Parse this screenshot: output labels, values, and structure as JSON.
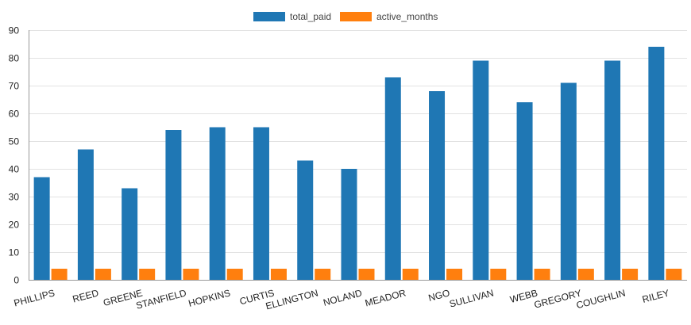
{
  "chart_data": {
    "type": "bar",
    "categories": [
      "PHILLIPS",
      "REED",
      "GREENE",
      "STANFIELD",
      "HOPKINS",
      "CURTIS",
      "ELLINGTON",
      "NOLAND",
      "MEADOR",
      "NGO",
      "SULLIVAN",
      "WEBB",
      "GREGORY",
      "COUGHLIN",
      "RILEY"
    ],
    "series": [
      {
        "name": "total_paid",
        "color": "#1f77b4",
        "values": [
          37,
          47,
          33,
          54,
          55,
          55,
          43,
          40,
          73,
          68,
          79,
          64,
          71,
          79,
          84
        ]
      },
      {
        "name": "active_months",
        "color": "#ff7f0e",
        "values": [
          4,
          4,
          4,
          4,
          4,
          4,
          4,
          4,
          4,
          4,
          4,
          4,
          4,
          4,
          4
        ]
      }
    ],
    "ylim": [
      0,
      90
    ],
    "yticks": [
      0,
      10,
      20,
      30,
      40,
      50,
      60,
      70,
      80,
      90
    ],
    "grid": true,
    "legend_position": "top-center",
    "title": "",
    "xlabel": "",
    "ylabel": ""
  }
}
